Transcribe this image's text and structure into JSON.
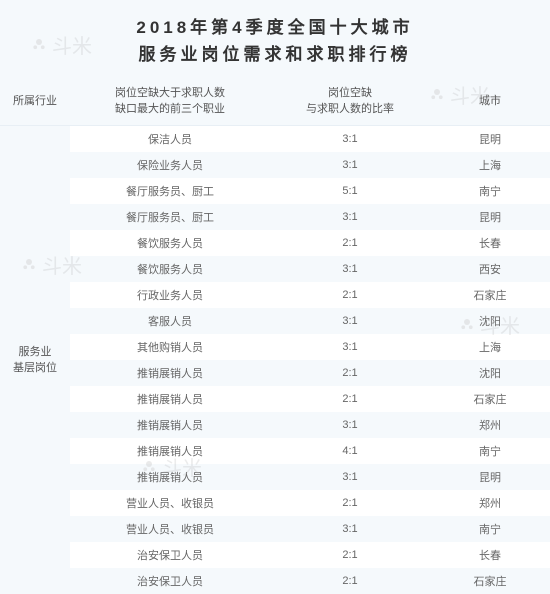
{
  "title_line1": "2018年第4季度全国十大城市",
  "title_line2": "服务业岗位需求和求职排行榜",
  "headers": {
    "industry": "所属行业",
    "occupation_line1": "岗位空缺大于求职人数",
    "occupation_line2": "缺口最大的前三个职业",
    "ratio_line1": "岗位空缺",
    "ratio_line2": "与求职人数的比率",
    "city": "城市"
  },
  "industry_label_line1": "服务业",
  "industry_label_line2": "基层岗位",
  "rows": [
    {
      "occ": "保洁人员",
      "ratio": "3:1",
      "city": "昆明"
    },
    {
      "occ": "保险业务人员",
      "ratio": "3:1",
      "city": "上海"
    },
    {
      "occ": "餐厅服务员、厨工",
      "ratio": "5:1",
      "city": "南宁"
    },
    {
      "occ": "餐厅服务员、厨工",
      "ratio": "3:1",
      "city": "昆明"
    },
    {
      "occ": "餐饮服务人员",
      "ratio": "2:1",
      "city": "长春"
    },
    {
      "occ": "餐饮服务人员",
      "ratio": "3:1",
      "city": "西安"
    },
    {
      "occ": "行政业务人员",
      "ratio": "2:1",
      "city": "石家庄"
    },
    {
      "occ": "客服人员",
      "ratio": "3:1",
      "city": "沈阳"
    },
    {
      "occ": "其他购销人员",
      "ratio": "3:1",
      "city": "上海"
    },
    {
      "occ": "推销展销人员",
      "ratio": "2:1",
      "city": "沈阳"
    },
    {
      "occ": "推销展销人员",
      "ratio": "2:1",
      "city": "石家庄"
    },
    {
      "occ": "推销展销人员",
      "ratio": "3:1",
      "city": "郑州"
    },
    {
      "occ": "推销展销人员",
      "ratio": "4:1",
      "city": "南宁"
    },
    {
      "occ": "推销展销人员",
      "ratio": "3:1",
      "city": "昆明"
    },
    {
      "occ": "营业人员、收银员",
      "ratio": "2:1",
      "city": "郑州"
    },
    {
      "occ": "营业人员、收银员",
      "ratio": "3:1",
      "city": "南宁"
    },
    {
      "occ": "治安保卫人员",
      "ratio": "2:1",
      "city": "长春"
    },
    {
      "occ": "治安保卫人员",
      "ratio": "2:1",
      "city": "石家庄"
    }
  ],
  "watermark_text": "斗米",
  "colors": {
    "header_bg": "#f5f9fc",
    "row_alt": "#f5f9fc",
    "text_primary": "#333",
    "text_secondary": "#666"
  }
}
